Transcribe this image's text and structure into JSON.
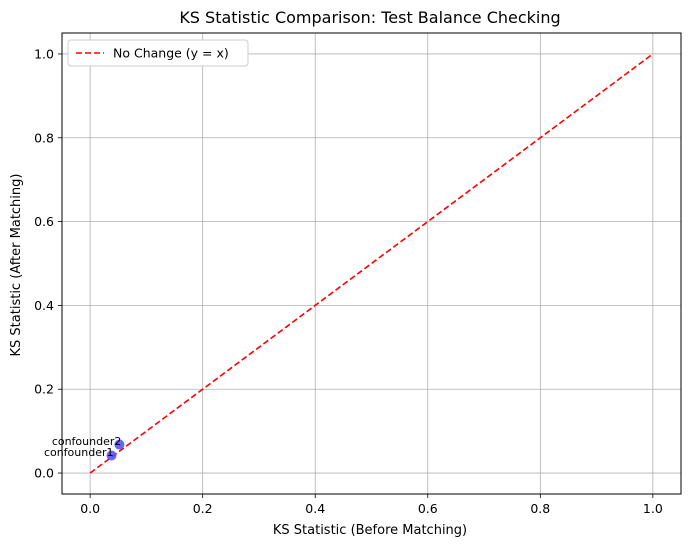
{
  "chart_data": {
    "type": "scatter",
    "title": "KS Statistic Comparison: Test Balance Checking",
    "xlabel": "KS Statistic (Before Matching)",
    "ylabel": "KS Statistic (After Matching)",
    "xlim": [
      -0.05,
      1.05
    ],
    "ylim": [
      -0.05,
      1.05
    ],
    "xticks": [
      0.0,
      0.2,
      0.4,
      0.6,
      0.8,
      1.0
    ],
    "yticks": [
      0.0,
      0.2,
      0.4,
      0.6,
      0.8,
      1.0
    ],
    "xtick_labels": [
      "0.0",
      "0.2",
      "0.4",
      "0.6",
      "0.8",
      "1.0"
    ],
    "ytick_labels": [
      "0.0",
      "0.2",
      "0.4",
      "0.6",
      "0.8",
      "1.0"
    ],
    "grid": true,
    "legend_position": "top-left",
    "points": [
      {
        "label": "confounder1",
        "x": 0.038,
        "y": 0.042
      },
      {
        "label": "confounder2",
        "x": 0.052,
        "y": 0.068
      }
    ],
    "reference_line": {
      "label": "No Change (y = x)",
      "x": [
        0,
        1
      ],
      "y": [
        0,
        1
      ]
    },
    "colors": {
      "points": "#4d4dff",
      "reference": "#ff0000",
      "grid": "#b0b0b0"
    }
  }
}
